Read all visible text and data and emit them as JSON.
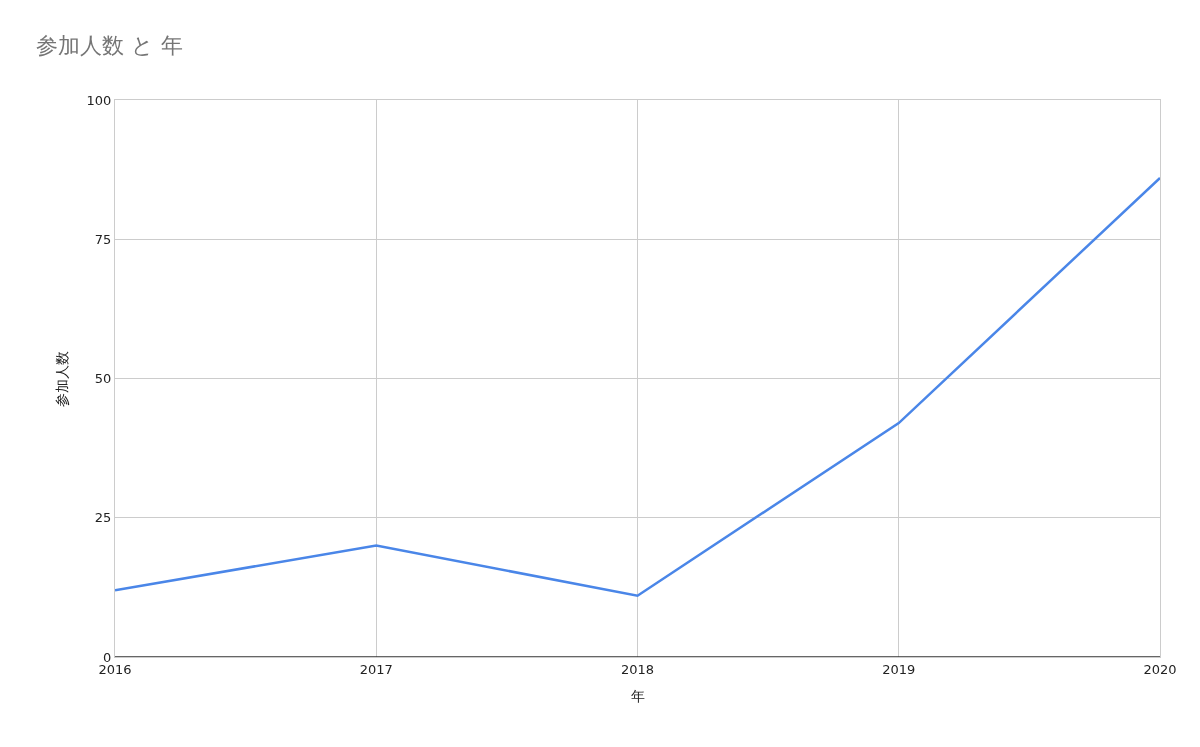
{
  "chart_data": {
    "type": "line",
    "title": "参加人数 と 年",
    "xlabel": "年",
    "ylabel": "参加人数",
    "x": [
      2016,
      2017,
      2018,
      2019,
      2020
    ],
    "series": [
      {
        "color": "#4a86e8",
        "values": [
          12,
          20,
          11,
          42,
          86
        ]
      }
    ],
    "xlim": [
      2016,
      2020
    ],
    "xticks": [
      2016,
      2017,
      2018,
      2019,
      2020
    ],
    "ylim": [
      0,
      100
    ],
    "yticks": [
      0,
      25,
      50,
      75,
      100
    ],
    "grid": true,
    "marker": "none",
    "line_style": "solid"
  }
}
